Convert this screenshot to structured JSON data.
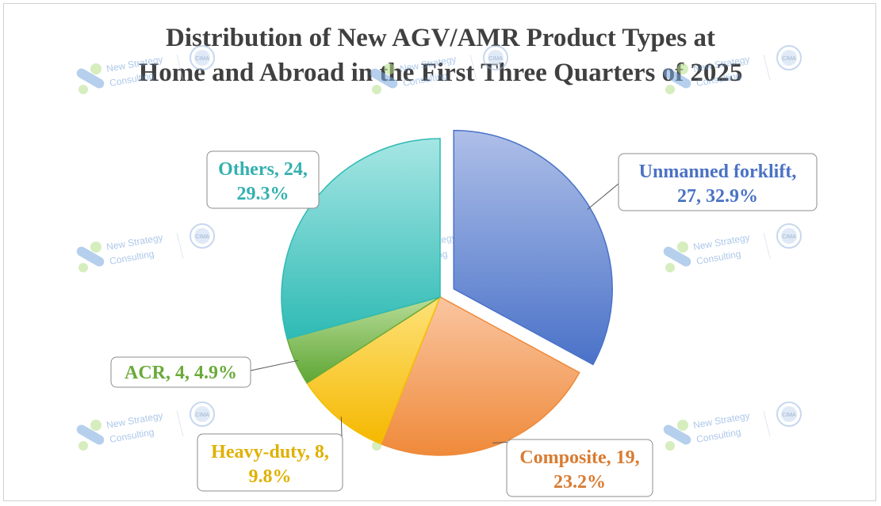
{
  "chart_data": {
    "type": "pie",
    "title_line1": "Distribution of New AGV/AMR Product Types at",
    "title_line2": "Home and Abroad in the First Three Quarters of 2025",
    "slices": [
      {
        "label": "Unmanned forklift",
        "value": 27,
        "percent": "32.9%",
        "color": "#4a72c8",
        "text_color": "#4a72c4",
        "label_line1": "Unmanned forklift,",
        "label_line2": "27, 32.9%"
      },
      {
        "label": "Composite",
        "value": 19,
        "percent": "23.2%",
        "color": "#ef8a3a",
        "text_color": "#d97b30",
        "label_line1": "Composite, 19,",
        "label_line2": "23.2%"
      },
      {
        "label": "Heavy-duty",
        "value": 8,
        "percent": "9.8%",
        "color": "#f5c000",
        "text_color": "#e0b000",
        "label_line1": "Heavy-duty, 8,",
        "label_line2": "9.8%"
      },
      {
        "label": "ACR",
        "value": 4,
        "percent": "4.9%",
        "color": "#6aaa3a",
        "text_color": "#6aaa3a",
        "label_line1": "ACR, 4, 4.9%",
        "label_line2": ""
      },
      {
        "label": "Others",
        "value": 24,
        "percent": "29.3%",
        "color": "#2fbab4",
        "text_color": "#34b0b0",
        "label_line1": "Others, 24,",
        "label_line2": "29.3%"
      }
    ],
    "exploded": "Unmanned forklift",
    "legend": "none"
  },
  "watermark": {
    "line1": "New Strategy",
    "line2": "Consulting",
    "seal": "CIMA"
  }
}
